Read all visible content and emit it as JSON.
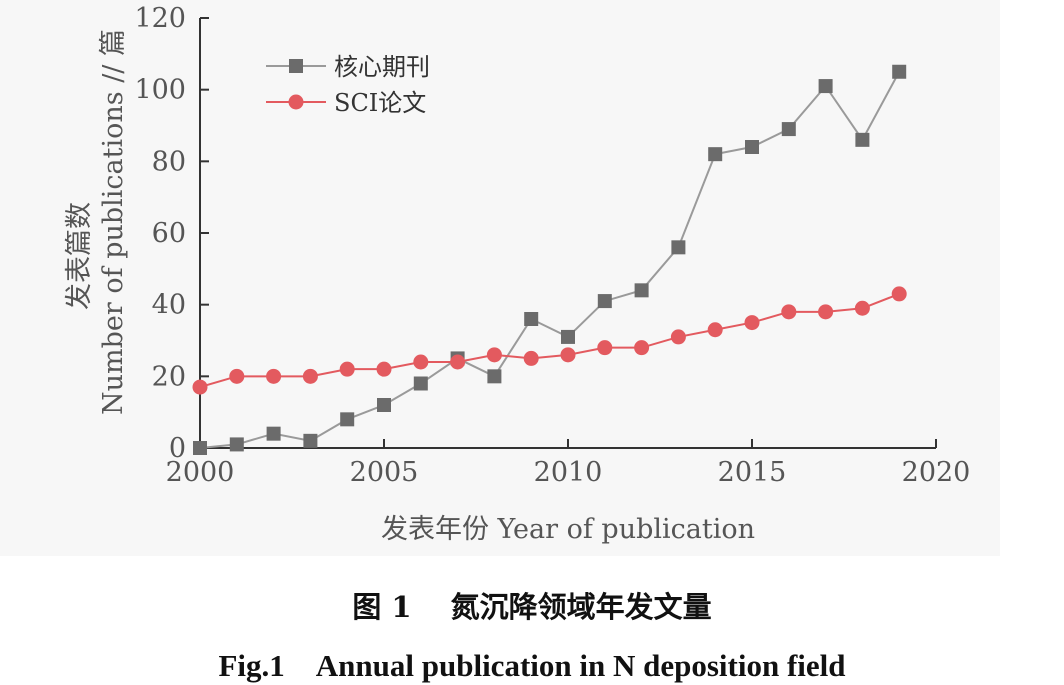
{
  "chart_data": {
    "type": "line",
    "ylabel_cn": "发表篇数",
    "ylabel_en": "Number of publications // 篇",
    "xlabel": "发表年份 Year of publication",
    "x": [
      2000,
      2001,
      2002,
      2003,
      2004,
      2005,
      2006,
      2007,
      2008,
      2009,
      2010,
      2011,
      2012,
      2013,
      2014,
      2015,
      2016,
      2017,
      2018,
      2019
    ],
    "xlim": [
      2000,
      2020
    ],
    "ylim": [
      0,
      120
    ],
    "xticks": [
      "2000",
      "2005",
      "2010",
      "2015",
      "2020"
    ],
    "yticks": [
      "0",
      "20",
      "40",
      "60",
      "80",
      "100",
      "120"
    ],
    "grid": false,
    "legend_position": "top-left",
    "series": [
      {
        "name": "核心期刊",
        "color": "#6b6b6b",
        "line_color": "#9a9a9a",
        "marker": "square",
        "values": [
          0,
          1,
          4,
          2,
          8,
          12,
          18,
          25,
          20,
          36,
          31,
          41,
          44,
          56,
          82,
          84,
          89,
          101,
          86,
          105
        ]
      },
      {
        "name": "SCI论文",
        "color": "#e35a5f",
        "line_color": "#e35a5f",
        "marker": "circle",
        "values": [
          17,
          20,
          20,
          20,
          22,
          22,
          24,
          24,
          26,
          25,
          26,
          28,
          28,
          31,
          33,
          35,
          38,
          38,
          39,
          43
        ]
      }
    ]
  },
  "caption": {
    "cn": "图 1　 氮沉降领域年发文量",
    "en": "Fig.1　Annual publication in N deposition field"
  }
}
